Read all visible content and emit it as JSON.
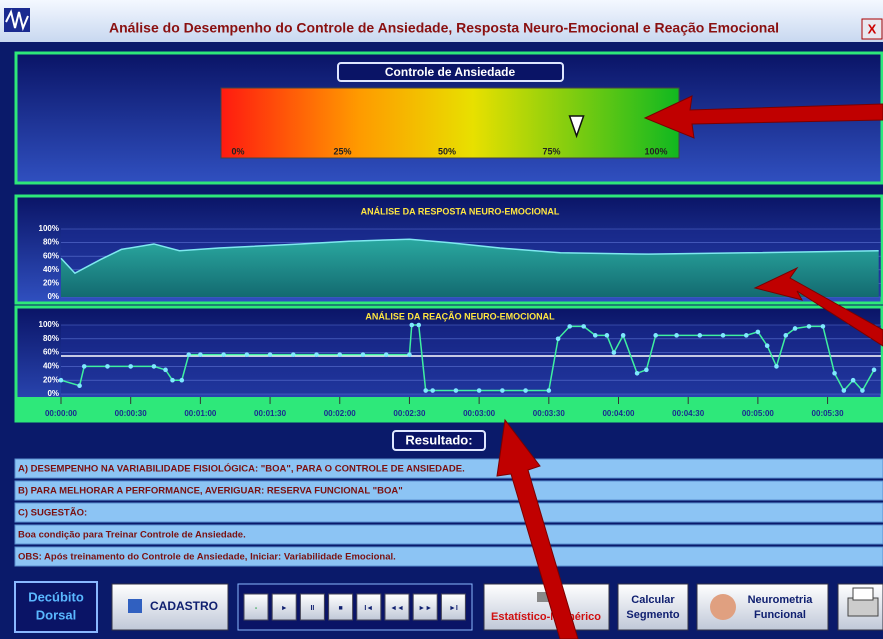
{
  "window": {
    "title": "Análise do Desempenho do Controle de Ansiedade, Resposta Neuro-Emocional e Reação Emocional",
    "close": "X"
  },
  "gauge": {
    "title": "Controle de Ansiedade",
    "value": 81,
    "ticks": [
      {
        "value": 0,
        "label": "0%"
      },
      {
        "value": 25,
        "label": "25%"
      },
      {
        "value": 50,
        "label": "50%"
      },
      {
        "value": 75,
        "label": "75%"
      },
      {
        "value": 100,
        "label": "100%"
      }
    ]
  },
  "response_chart": {
    "type": "area",
    "title": "ANÁLISE DA RESPOSTA NEURO-EMOCIONAL",
    "color": "#7fe8f0",
    "xlim": [
      0,
      353
    ],
    "ylim": [
      0,
      100
    ],
    "yticks": [
      {
        "value": 0,
        "label": "0%"
      },
      {
        "value": 20,
        "label": "20%"
      },
      {
        "value": 40,
        "label": "40%"
      },
      {
        "value": 60,
        "label": "60%"
      },
      {
        "value": 80,
        "label": "80%"
      },
      {
        "value": 100,
        "label": "100%"
      }
    ],
    "x": [
      0,
      6,
      17,
      26,
      40,
      51,
      68,
      103,
      124,
      150,
      167,
      189,
      215,
      253,
      296,
      352
    ],
    "values": [
      57,
      35,
      55,
      70,
      78,
      68,
      72,
      78,
      82,
      85,
      80,
      72,
      65,
      63,
      65,
      68
    ]
  },
  "reaction_chart": {
    "type": "line",
    "title": "ANÁLISE DA REAÇÃO NEURO-EMOCIONAL",
    "color": "#3ff0a0",
    "marker_color": "#7fe8ff",
    "reference": 55,
    "xlim": [
      0,
      353
    ],
    "ylim": [
      0,
      100
    ],
    "yticks": [
      {
        "value": 0,
        "label": "0%"
      },
      {
        "value": 20,
        "label": "20%"
      },
      {
        "value": 40,
        "label": "40%"
      },
      {
        "value": 60,
        "label": "60%"
      },
      {
        "value": 80,
        "label": "80%"
      },
      {
        "value": 100,
        "label": "100%"
      }
    ],
    "xticks": [
      {
        "value": 0,
        "label": "00:00:00"
      },
      {
        "value": 30,
        "label": "00:00:30"
      },
      {
        "value": 60,
        "label": "00:01:00"
      },
      {
        "value": 90,
        "label": "00:01:30"
      },
      {
        "value": 120,
        "label": "00:02:00"
      },
      {
        "value": 150,
        "label": "00:02:30"
      },
      {
        "value": 180,
        "label": "00:03:00"
      },
      {
        "value": 210,
        "label": "00:03:30"
      },
      {
        "value": 240,
        "label": "00:04:00"
      },
      {
        "value": 270,
        "label": "00:04:30"
      },
      {
        "value": 300,
        "label": "00:05:00"
      },
      {
        "value": 330,
        "label": "00:05:30"
      }
    ],
    "x": [
      0,
      8,
      10,
      20,
      30,
      40,
      45,
      48,
      52,
      55,
      60,
      70,
      80,
      90,
      100,
      110,
      120,
      130,
      140,
      150,
      151,
      154,
      157,
      160,
      170,
      180,
      190,
      200,
      210,
      214,
      219,
      225,
      230,
      235,
      238,
      242,
      248,
      252,
      256,
      265,
      275,
      285,
      295,
      300,
      304,
      308,
      312,
      316,
      322,
      328,
      333,
      337,
      341,
      345,
      350
    ],
    "values": [
      20,
      12,
      40,
      40,
      40,
      40,
      35,
      20,
      20,
      57,
      57,
      57,
      57,
      57,
      57,
      57,
      57,
      57,
      57,
      57,
      100,
      100,
      5,
      5,
      5,
      5,
      5,
      5,
      5,
      80,
      98,
      98,
      85,
      85,
      60,
      85,
      30,
      35,
      85,
      85,
      85,
      85,
      85,
      90,
      70,
      40,
      85,
      95,
      98,
      98,
      30,
      5,
      20,
      5,
      35
    ]
  },
  "results": {
    "title": "Resultado:",
    "rows": [
      "A) DESEMPENHO NA VARIABILIDADE FISIOLÓGICA: \"BOA\", PARA O CONTROLE DE ANSIEDADE.",
      "B) PARA MELHORAR A PERFORMANCE, AVERIGUAR: RESERVA FUNCIONAL \"BOA\"",
      "C) SUGESTÃO:",
      "Boa condição para Treinar Controle de Ansiedade.",
      "OBS: Após treinamento do Controle de Ansiedade, Iniciar: Variabilidade Emocional."
    ]
  },
  "toolbar": {
    "position": [
      "Decúbito",
      "Dorsal"
    ],
    "register": "CADASTRO",
    "media": [
      "-",
      "►",
      "II",
      "■",
      "I◄",
      "◄◄",
      "►►",
      "►I"
    ],
    "statistics": "Estatístico-Numérico",
    "segment": [
      "Calcular",
      "Segmento"
    ],
    "neurometry": [
      "Neurometria",
      "Funcional"
    ]
  }
}
